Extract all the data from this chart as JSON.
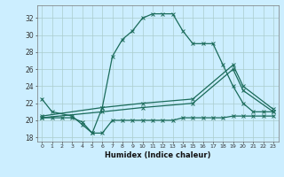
{
  "xlabel": "Humidex (Indice chaleur)",
  "bg_color": "#cceeff",
  "grid_color": "#aacccc",
  "line_color": "#1a6b5a",
  "xlim": [
    -0.5,
    23.5
  ],
  "ylim": [
    17.5,
    33.5
  ],
  "yticks": [
    18,
    20,
    22,
    24,
    26,
    28,
    30,
    32
  ],
  "curve1_x": [
    0,
    1,
    3,
    4,
    5,
    6,
    7,
    8,
    9,
    10,
    11,
    12,
    13,
    14,
    15,
    16,
    17,
    18,
    19,
    20,
    21,
    22,
    23
  ],
  "curve1_y": [
    22.5,
    21.0,
    20.5,
    19.5,
    18.5,
    21.5,
    27.5,
    29.5,
    30.5,
    32.0,
    32.5,
    32.5,
    32.5,
    30.5,
    29.0,
    29.0,
    29.0,
    26.5,
    24.0,
    22.0,
    21.0,
    21.0,
    21.0
  ],
  "curve2_x": [
    0,
    1,
    2,
    3,
    4,
    5,
    6,
    7,
    8,
    9,
    10,
    11,
    12,
    13,
    14,
    15,
    16,
    17,
    18,
    19,
    20,
    21,
    22,
    23
  ],
  "curve2_y": [
    20.3,
    20.3,
    20.3,
    20.3,
    19.8,
    18.5,
    18.5,
    20.0,
    20.0,
    20.0,
    20.0,
    20.0,
    20.0,
    20.0,
    20.3,
    20.3,
    20.3,
    20.3,
    20.3,
    20.5,
    20.5,
    20.5,
    20.5,
    20.5
  ],
  "curve3_x": [
    0,
    6,
    10,
    15,
    19,
    20,
    23
  ],
  "curve3_y": [
    20.5,
    21.5,
    22.0,
    22.5,
    26.5,
    24.0,
    21.3
  ],
  "curve4_x": [
    0,
    6,
    10,
    15,
    19,
    20,
    23
  ],
  "curve4_y": [
    20.3,
    21.0,
    21.5,
    22.0,
    26.0,
    23.5,
    21.0
  ]
}
